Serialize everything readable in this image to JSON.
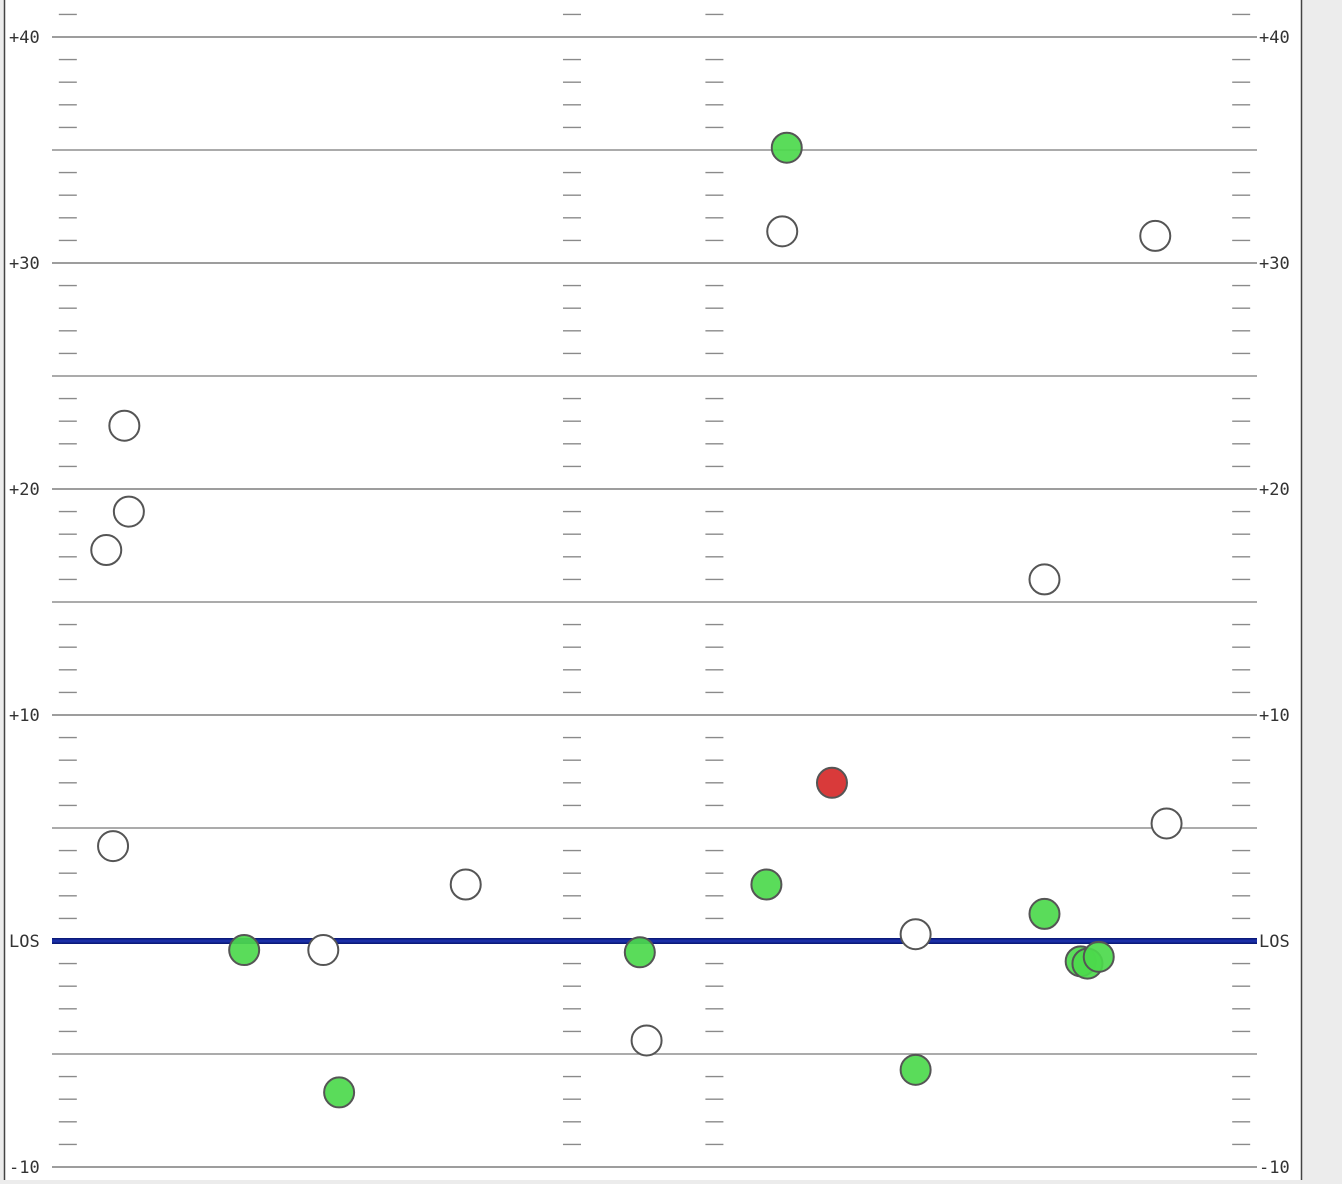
{
  "colors": {
    "background": "#ececec",
    "field": "#ffffff",
    "border": "#444444",
    "yard_line": "#8f8f8f",
    "hash": "#8a8a8a",
    "los": "#1a2ea6",
    "label": "#333333",
    "complete": "#4cd94c",
    "incomplete": "#ffffff",
    "interception": "#d93a3a",
    "marker_stroke": "#555555"
  },
  "chart_data": {
    "type": "scatter",
    "title": "",
    "xlabel": "",
    "ylabel": "",
    "ylim": [
      -10,
      41
    ],
    "xlim": [
      0,
      53.3
    ],
    "grid": true,
    "yard_labels": [
      {
        "y": 40,
        "text": "+40"
      },
      {
        "y": 30,
        "text": "+30"
      },
      {
        "y": 20,
        "text": "+20"
      },
      {
        "y": 10,
        "text": "+10"
      },
      {
        "y": 0,
        "text": "LOS"
      },
      {
        "y": -10,
        "text": "-10"
      }
    ],
    "five_yard_lines": [
      35,
      25,
      15,
      5,
      -5
    ],
    "hash_columns": [
      0.7,
      23.0,
      29.3,
      52.6
    ],
    "series": [
      {
        "result": "complete",
        "points": [
          {
            "x": 8.5,
            "y": -0.4
          },
          {
            "x": 12.7,
            "y": -6.7
          },
          {
            "x": 26.0,
            "y": -0.5
          },
          {
            "x": 32.5,
            "y": 35.1
          },
          {
            "x": 31.6,
            "y": 2.5
          },
          {
            "x": 38.2,
            "y": -5.7
          },
          {
            "x": 43.9,
            "y": 1.2
          },
          {
            "x": 45.5,
            "y": -0.9
          },
          {
            "x": 45.8,
            "y": -1.0
          },
          {
            "x": 46.3,
            "y": -0.7
          }
        ]
      },
      {
        "result": "incomplete",
        "points": [
          {
            "x": 3.2,
            "y": 22.8
          },
          {
            "x": 3.4,
            "y": 19.0
          },
          {
            "x": 2.4,
            "y": 17.3
          },
          {
            "x": 2.7,
            "y": 4.2
          },
          {
            "x": 12.0,
            "y": -0.4
          },
          {
            "x": 18.3,
            "y": 2.5
          },
          {
            "x": 26.3,
            "y": -4.4
          },
          {
            "x": 32.3,
            "y": 31.4
          },
          {
            "x": 38.2,
            "y": 0.3
          },
          {
            "x": 43.9,
            "y": 16.0
          },
          {
            "x": 49.3,
            "y": 5.2
          },
          {
            "x": 48.8,
            "y": 31.2
          }
        ]
      },
      {
        "result": "interception",
        "points": [
          {
            "x": 34.5,
            "y": 7.0
          }
        ]
      }
    ]
  }
}
